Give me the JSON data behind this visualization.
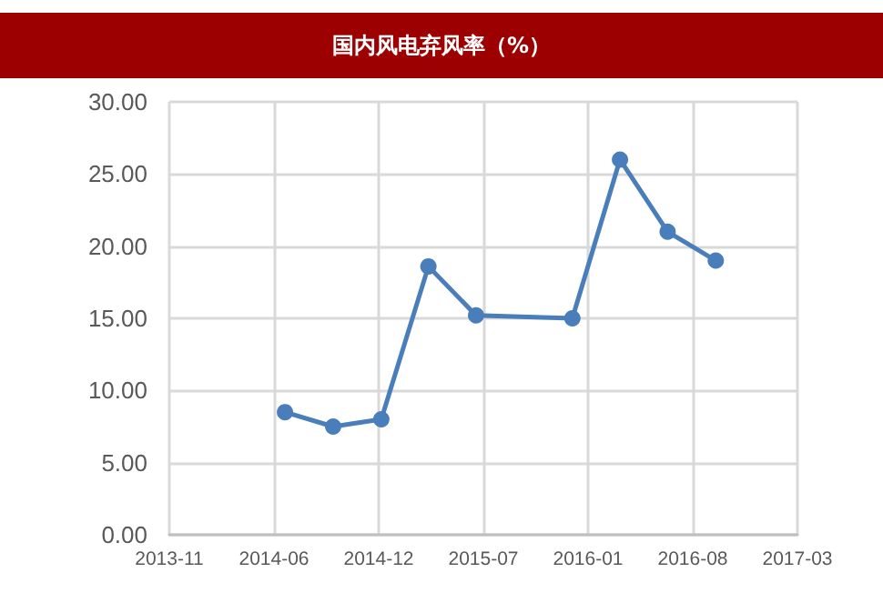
{
  "chart_data": {
    "type": "line",
    "title": "国内风电弃风率（%）",
    "x": [
      "2014-06-30",
      "2014-09-30",
      "2014-12-31",
      "2015-03-31",
      "2015-06-30",
      "2015-12-31",
      "2016-03-31",
      "2016-06-30",
      "2016-09-30"
    ],
    "series": [
      {
        "color": "#4a7ebb",
        "values": [
          8.5,
          7.5,
          8.0,
          18.6,
          15.2,
          15.0,
          26.0,
          21.0,
          19.0
        ]
      }
    ],
    "xlim": [
      "2013-11-21",
      "2017-03-05"
    ],
    "xticks": [
      {
        "value": "2013-11-21",
        "label": "2013-11"
      },
      {
        "value": "2014-06-09",
        "label": "2014-06"
      },
      {
        "value": "2014-12-26",
        "label": "2014-12"
      },
      {
        "value": "2015-07-14",
        "label": "2015-07"
      },
      {
        "value": "2016-01-30",
        "label": "2016-01"
      },
      {
        "value": "2016-08-17",
        "label": "2016-08"
      },
      {
        "value": "2017-03-05",
        "label": "2017-03"
      }
    ],
    "ylim": [
      0,
      30
    ],
    "yticks": [
      {
        "value": 0,
        "label": "0.00"
      },
      {
        "value": 5,
        "label": "5.00"
      },
      {
        "value": 10,
        "label": "10.00"
      },
      {
        "value": 15,
        "label": "15.00"
      },
      {
        "value": 20,
        "label": "20.00"
      },
      {
        "value": 25,
        "label": "25.00"
      },
      {
        "value": 30,
        "label": "30.00"
      }
    ],
    "grid": true,
    "marker": "circle",
    "line_style": "solid"
  }
}
